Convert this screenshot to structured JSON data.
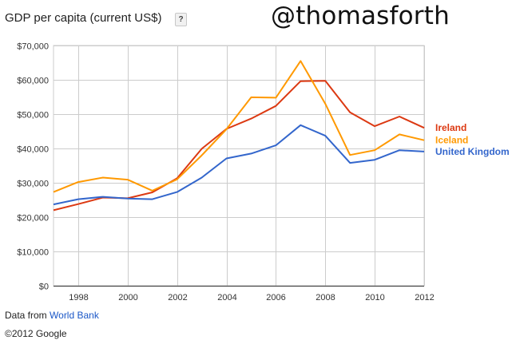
{
  "header": {
    "title": "GDP per capita (current US$)",
    "help_label": "?",
    "watermark": "@thomasforth"
  },
  "footer": {
    "source_prefix": "Data from",
    "source_link": "World Bank",
    "copyright": "©2012 Google"
  },
  "chart_data": {
    "type": "line",
    "title": "GDP per capita (current US$)",
    "xlabel": "",
    "ylabel": "",
    "x": [
      1997,
      1998,
      1999,
      2000,
      2001,
      2002,
      2003,
      2004,
      2005,
      2006,
      2007,
      2008,
      2009,
      2010,
      2011,
      2012
    ],
    "xlim": [
      1997,
      2012
    ],
    "ylim": [
      0,
      70000
    ],
    "x_ticks": [
      1998,
      2000,
      2002,
      2004,
      2006,
      2008,
      2010,
      2012
    ],
    "x_tick_labels": [
      "1998",
      "2000",
      "2002",
      "2004",
      "2006",
      "2008",
      "2010",
      "2012"
    ],
    "y_ticks": [
      0,
      10000,
      20000,
      30000,
      40000,
      50000,
      60000,
      70000
    ],
    "y_tick_labels": [
      "$0",
      "$10,000",
      "$20,000",
      "$30,000",
      "$40,000",
      "$50,000",
      "$60,000",
      "$70,000"
    ],
    "grid": true,
    "legend": "right, labels at line ends",
    "series": [
      {
        "name": "Ireland",
        "color": "#dc3912",
        "values": [
          22000,
          23800,
          25700,
          25500,
          27200,
          31300,
          39900,
          45700,
          48700,
          52400,
          59600,
          59700,
          50500,
          46500,
          49300,
          46000
        ]
      },
      {
        "name": "Iceland",
        "color": "#ff9900",
        "values": [
          27300,
          30200,
          31500,
          30900,
          27700,
          31000,
          38000,
          45600,
          54900,
          54800,
          65500,
          53000,
          38100,
          39500,
          44100,
          42400
        ]
      },
      {
        "name": "United Kingdom",
        "color": "#3366cc",
        "values": [
          23700,
          25200,
          25900,
          25400,
          25200,
          27300,
          31500,
          37100,
          38500,
          40900,
          46800,
          43700,
          35800,
          36700,
          39500,
          39100
        ]
      }
    ]
  }
}
